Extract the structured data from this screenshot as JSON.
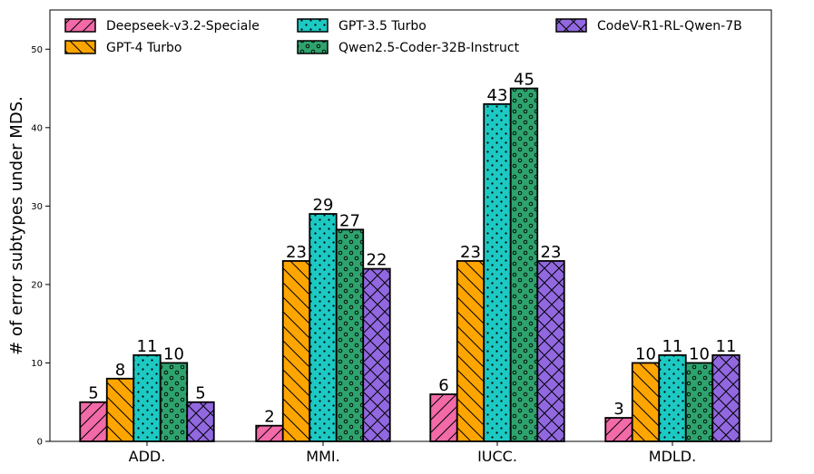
{
  "chart_data": {
    "type": "bar",
    "title": "",
    "xlabel": "",
    "ylabel": "# of error subtypes under MDS.",
    "ylim": [
      0,
      55
    ],
    "yticks": [
      0,
      10,
      20,
      30,
      40,
      50
    ],
    "grid": false,
    "legend_position": "top",
    "categories": [
      "ADD.",
      "MMI.",
      "IUCC.",
      "MDLD."
    ],
    "series": [
      {
        "name": "Deepseek-v3.2-Speciale",
        "color": "#f26aa8",
        "pattern": "diag-forward",
        "values": [
          5,
          2,
          6,
          3
        ]
      },
      {
        "name": "GPT-4 Turbo",
        "color": "#ffa500",
        "pattern": "diag-back",
        "values": [
          8,
          23,
          23,
          10
        ]
      },
      {
        "name": "GPT-3.5 Turbo",
        "color": "#1cc9c3",
        "pattern": "dots",
        "values": [
          11,
          29,
          43,
          11
        ]
      },
      {
        "name": "Qwen2.5-Coder-32B-Instruct",
        "color": "#2ea36e",
        "pattern": "circles",
        "values": [
          10,
          27,
          45,
          10
        ]
      },
      {
        "name": "CodeV-R1-RL-Qwen-7B",
        "color": "#9168e0",
        "pattern": "cross",
        "values": [
          5,
          22,
          23,
          11
        ]
      }
    ]
  }
}
